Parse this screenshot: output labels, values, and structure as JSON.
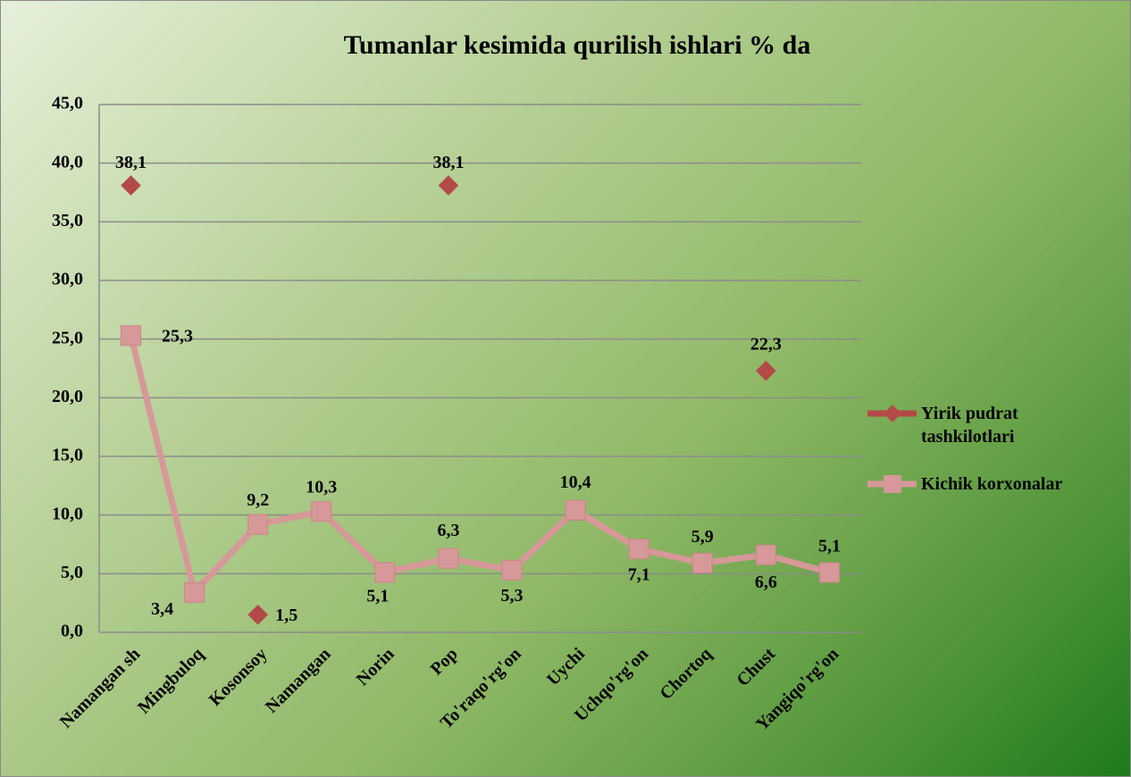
{
  "chart_data": {
    "type": "line",
    "title": "Tumanlar kesimida qurilish ishlari   % da",
    "categories": [
      "Namangan sh",
      "Mingbuloq",
      "Kosonsoy",
      "Namangan",
      "Norin",
      "Pop",
      "To'raqo'rg'on",
      "Uychi",
      "Uchqo'rg'on",
      "Chortoq",
      "Chust",
      "Yangiqo'rg'on"
    ],
    "series": [
      {
        "name": "Yirik pudrat tashkilotlari",
        "color": "#b34a47",
        "marker": "diamond",
        "values": [
          38.1,
          null,
          1.5,
          null,
          null,
          38.1,
          null,
          null,
          null,
          null,
          22.3,
          null
        ],
        "value_labels": [
          "38,1",
          null,
          "1,5",
          null,
          null,
          "38,1",
          null,
          null,
          null,
          null,
          "22,3",
          null
        ]
      },
      {
        "name": "Kichik korxonalar",
        "color": "#d69898",
        "marker": "square",
        "values": [
          25.3,
          3.4,
          9.2,
          10.3,
          5.1,
          6.3,
          5.3,
          10.4,
          7.1,
          5.9,
          6.6,
          5.1
        ],
        "value_labels": [
          "25,3",
          "3,4",
          "9,2",
          "10,3",
          "5,1",
          "6,3",
          "5,3",
          "10,4",
          "7,1",
          "5,9",
          "6,6",
          "5,1"
        ]
      }
    ],
    "ylim": [
      0,
      45
    ],
    "yticks": [
      {
        "value": 0,
        "label": "0,0"
      },
      {
        "value": 5,
        "label": "5,0"
      },
      {
        "value": 10,
        "label": "10,0"
      },
      {
        "value": 15,
        "label": "15,0"
      },
      {
        "value": 20,
        "label": "20,0"
      },
      {
        "value": 25,
        "label": "25,0"
      },
      {
        "value": 30,
        "label": "30,0"
      },
      {
        "value": 35,
        "label": "35,0"
      },
      {
        "value": 40,
        "label": "40,0"
      },
      {
        "value": 45,
        "label": "45,0"
      }
    ],
    "grid": true,
    "legend": "right"
  }
}
